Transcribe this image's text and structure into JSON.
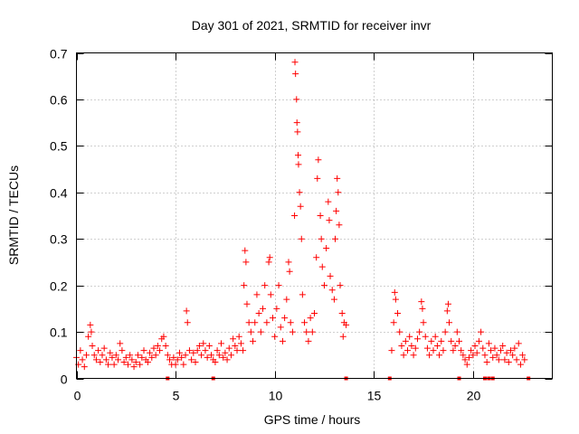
{
  "chart_data": {
    "type": "scatter",
    "title": "Day 301 of 2021, SRMTID for receiver invr",
    "xlabel": "GPS time / hours",
    "ylabel": "SRMTID / TECUs",
    "xlim": [
      0,
      24
    ],
    "ylim": [
      0,
      0.7
    ],
    "x_ticks": [
      0,
      5,
      10,
      15,
      20
    ],
    "x_tick_labels": [
      "0",
      "5",
      "10",
      "15",
      "20"
    ],
    "y_ticks": [
      0,
      0.1,
      0.2,
      0.3,
      0.4,
      0.5,
      0.6,
      0.7
    ],
    "y_tick_labels": [
      "0",
      "0.1",
      "0.2",
      "0.3",
      "0.4",
      "0.5",
      "0.6",
      "0.7"
    ],
    "grid": true,
    "marker": "+",
    "color": "#ff0000",
    "series": [
      {
        "name": "SRMTID",
        "points": [
          [
            0.0,
            0.045
          ],
          [
            0.1,
            0.03
          ],
          [
            0.2,
            0.06
          ],
          [
            0.3,
            0.04
          ],
          [
            0.4,
            0.025
          ],
          [
            0.5,
            0.05
          ],
          [
            0.6,
            0.09
          ],
          [
            0.7,
            0.115
          ],
          [
            0.75,
            0.1
          ],
          [
            0.8,
            0.07
          ],
          [
            0.9,
            0.05
          ],
          [
            1.0,
            0.04
          ],
          [
            1.1,
            0.06
          ],
          [
            1.2,
            0.035
          ],
          [
            1.3,
            0.05
          ],
          [
            1.4,
            0.065
          ],
          [
            1.5,
            0.04
          ],
          [
            1.6,
            0.03
          ],
          [
            1.7,
            0.055
          ],
          [
            1.8,
            0.045
          ],
          [
            1.9,
            0.03
          ],
          [
            2.0,
            0.05
          ],
          [
            2.1,
            0.04
          ],
          [
            2.2,
            0.075
          ],
          [
            2.3,
            0.06
          ],
          [
            2.4,
            0.035
          ],
          [
            2.5,
            0.045
          ],
          [
            2.6,
            0.03
          ],
          [
            2.7,
            0.05
          ],
          [
            2.8,
            0.04
          ],
          [
            2.9,
            0.025
          ],
          [
            3.0,
            0.035
          ],
          [
            3.1,
            0.05
          ],
          [
            3.2,
            0.03
          ],
          [
            3.3,
            0.045
          ],
          [
            3.4,
            0.06
          ],
          [
            3.5,
            0.04
          ],
          [
            3.6,
            0.035
          ],
          [
            3.7,
            0.055
          ],
          [
            3.8,
            0.045
          ],
          [
            3.9,
            0.065
          ],
          [
            4.0,
            0.05
          ],
          [
            4.1,
            0.07
          ],
          [
            4.2,
            0.06
          ],
          [
            4.3,
            0.085
          ],
          [
            4.4,
            0.09
          ],
          [
            4.5,
            0.07
          ],
          [
            4.6,
            0.05
          ],
          [
            4.7,
            0.04
          ],
          [
            4.8,
            0.03
          ],
          [
            4.9,
            0.045
          ],
          [
            5.0,
            0.03
          ],
          [
            5.1,
            0.04
          ],
          [
            5.2,
            0.055
          ],
          [
            5.3,
            0.045
          ],
          [
            5.4,
            0.03
          ],
          [
            5.5,
            0.05
          ],
          [
            5.55,
            0.145
          ],
          [
            5.6,
            0.12
          ],
          [
            5.7,
            0.06
          ],
          [
            5.8,
            0.04
          ],
          [
            5.9,
            0.055
          ],
          [
            6.0,
            0.035
          ],
          [
            6.1,
            0.06
          ],
          [
            6.2,
            0.07
          ],
          [
            6.3,
            0.05
          ],
          [
            6.4,
            0.075
          ],
          [
            6.5,
            0.06
          ],
          [
            6.6,
            0.045
          ],
          [
            6.7,
            0.07
          ],
          [
            6.8,
            0.05
          ],
          [
            6.9,
            0.04
          ],
          [
            7.0,
            0.035
          ],
          [
            7.1,
            0.06
          ],
          [
            7.2,
            0.05
          ],
          [
            7.3,
            0.075
          ],
          [
            7.4,
            0.045
          ],
          [
            7.5,
            0.055
          ],
          [
            7.6,
            0.04
          ],
          [
            7.7,
            0.065
          ],
          [
            7.8,
            0.05
          ],
          [
            7.9,
            0.085
          ],
          [
            8.0,
            0.07
          ],
          [
            8.1,
            0.06
          ],
          [
            8.2,
            0.09
          ],
          [
            8.3,
            0.075
          ],
          [
            8.4,
            0.06
          ],
          [
            8.45,
            0.2
          ],
          [
            8.5,
            0.275
          ],
          [
            8.55,
            0.25
          ],
          [
            8.6,
            0.16
          ],
          [
            8.7,
            0.12
          ],
          [
            8.8,
            0.1
          ],
          [
            8.9,
            0.08
          ],
          [
            9.0,
            0.12
          ],
          [
            9.1,
            0.18
          ],
          [
            9.2,
            0.14
          ],
          [
            9.3,
            0.1
          ],
          [
            9.4,
            0.15
          ],
          [
            9.5,
            0.2
          ],
          [
            9.6,
            0.12
          ],
          [
            9.7,
            0.25
          ],
          [
            9.75,
            0.26
          ],
          [
            9.8,
            0.18
          ],
          [
            9.9,
            0.13
          ],
          [
            10.0,
            0.09
          ],
          [
            10.1,
            0.15
          ],
          [
            10.2,
            0.2
          ],
          [
            10.3,
            0.11
          ],
          [
            10.4,
            0.08
          ],
          [
            10.5,
            0.13
          ],
          [
            10.6,
            0.17
          ],
          [
            10.7,
            0.25
          ],
          [
            10.75,
            0.23
          ],
          [
            10.8,
            0.12
          ],
          [
            10.9,
            0.1
          ],
          [
            11.0,
            0.35
          ],
          [
            11.02,
            0.68
          ],
          [
            11.05,
            0.655
          ],
          [
            11.1,
            0.6
          ],
          [
            11.12,
            0.55
          ],
          [
            11.15,
            0.53
          ],
          [
            11.18,
            0.48
          ],
          [
            11.2,
            0.46
          ],
          [
            11.25,
            0.4
          ],
          [
            11.3,
            0.37
          ],
          [
            11.35,
            0.3
          ],
          [
            11.4,
            0.18
          ],
          [
            11.5,
            0.12
          ],
          [
            11.6,
            0.1
          ],
          [
            11.7,
            0.08
          ],
          [
            11.8,
            0.13
          ],
          [
            11.9,
            0.1
          ],
          [
            12.0,
            0.14
          ],
          [
            12.1,
            0.26
          ],
          [
            12.15,
            0.43
          ],
          [
            12.2,
            0.47
          ],
          [
            12.3,
            0.35
          ],
          [
            12.35,
            0.3
          ],
          [
            12.4,
            0.24
          ],
          [
            12.5,
            0.2
          ],
          [
            12.6,
            0.28
          ],
          [
            12.7,
            0.38
          ],
          [
            12.75,
            0.34
          ],
          [
            12.8,
            0.22
          ],
          [
            12.9,
            0.19
          ],
          [
            13.0,
            0.17
          ],
          [
            13.05,
            0.3
          ],
          [
            13.1,
            0.36
          ],
          [
            13.15,
            0.43
          ],
          [
            13.2,
            0.4
          ],
          [
            13.25,
            0.33
          ],
          [
            13.3,
            0.2
          ],
          [
            13.4,
            0.14
          ],
          [
            13.45,
            0.09
          ],
          [
            13.5,
            0.12
          ],
          [
            13.6,
            0.115
          ],
          [
            15.9,
            0.06
          ],
          [
            16.0,
            0.12
          ],
          [
            16.05,
            0.185
          ],
          [
            16.1,
            0.17
          ],
          [
            16.2,
            0.14
          ],
          [
            16.3,
            0.1
          ],
          [
            16.4,
            0.07
          ],
          [
            16.5,
            0.05
          ],
          [
            16.6,
            0.08
          ],
          [
            16.7,
            0.06
          ],
          [
            16.8,
            0.09
          ],
          [
            16.9,
            0.07
          ],
          [
            17.0,
            0.05
          ],
          [
            17.1,
            0.065
          ],
          [
            17.2,
            0.085
          ],
          [
            17.3,
            0.1
          ],
          [
            17.4,
            0.165
          ],
          [
            17.45,
            0.15
          ],
          [
            17.5,
            0.12
          ],
          [
            17.6,
            0.09
          ],
          [
            17.7,
            0.065
          ],
          [
            17.8,
            0.05
          ],
          [
            17.9,
            0.08
          ],
          [
            18.0,
            0.06
          ],
          [
            18.1,
            0.09
          ],
          [
            18.2,
            0.07
          ],
          [
            18.3,
            0.05
          ],
          [
            18.4,
            0.08
          ],
          [
            18.5,
            0.06
          ],
          [
            18.6,
            0.1
          ],
          [
            18.7,
            0.145
          ],
          [
            18.75,
            0.16
          ],
          [
            18.8,
            0.12
          ],
          [
            18.9,
            0.08
          ],
          [
            19.0,
            0.06
          ],
          [
            19.1,
            0.07
          ],
          [
            19.2,
            0.1
          ],
          [
            19.3,
            0.08
          ],
          [
            19.4,
            0.06
          ],
          [
            19.5,
            0.05
          ],
          [
            19.6,
            0.04
          ],
          [
            19.7,
            0.03
          ],
          [
            19.8,
            0.045
          ],
          [
            19.9,
            0.06
          ],
          [
            20.0,
            0.05
          ],
          [
            20.1,
            0.07
          ],
          [
            20.2,
            0.055
          ],
          [
            20.3,
            0.08
          ],
          [
            20.4,
            0.1
          ],
          [
            20.5,
            0.065
          ],
          [
            20.6,
            0.05
          ],
          [
            20.7,
            0.035
          ],
          [
            20.8,
            0.075
          ],
          [
            20.9,
            0.06
          ],
          [
            21.0,
            0.045
          ],
          [
            21.1,
            0.065
          ],
          [
            21.2,
            0.05
          ],
          [
            21.3,
            0.04
          ],
          [
            21.4,
            0.06
          ],
          [
            21.5,
            0.07
          ],
          [
            21.6,
            0.04
          ],
          [
            21.7,
            0.055
          ],
          [
            21.8,
            0.035
          ],
          [
            21.9,
            0.06
          ],
          [
            22.0,
            0.05
          ],
          [
            22.1,
            0.065
          ],
          [
            22.2,
            0.04
          ],
          [
            22.3,
            0.075
          ],
          [
            22.4,
            0.03
          ],
          [
            22.5,
            0.05
          ],
          [
            22.6,
            0.04
          ]
        ]
      }
    ],
    "gap_markers_x": [
      4.6,
      6.9,
      13.6,
      15.8,
      19.3,
      20.6,
      20.8,
      21.0,
      22.8
    ]
  }
}
